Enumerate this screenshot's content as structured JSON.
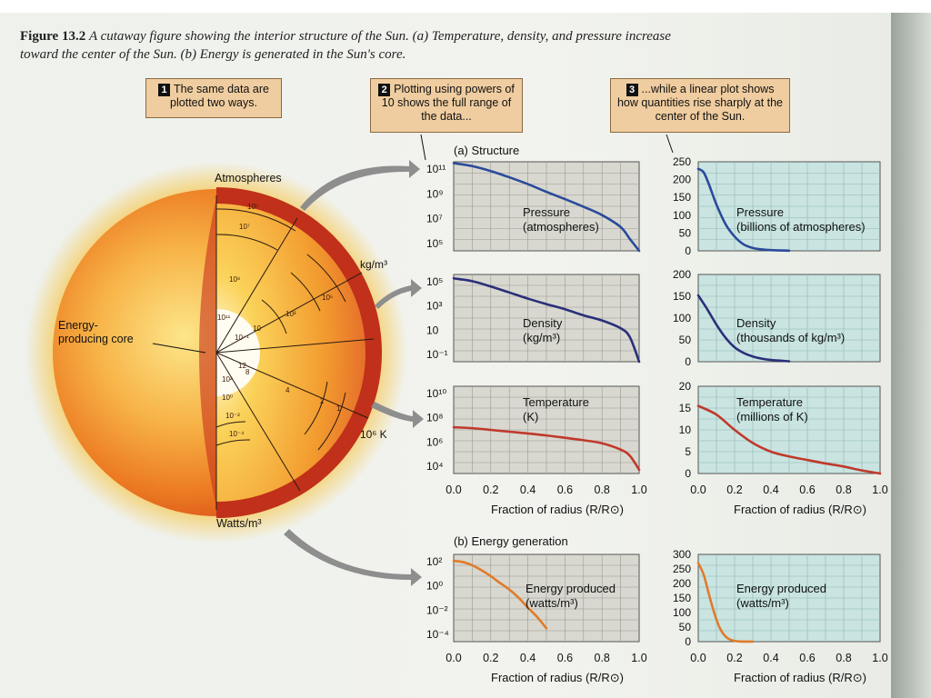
{
  "caption": {
    "label": "Figure 13.2",
    "text": "A cutaway figure showing the interior structure of the Sun. (a) Temperature, density, and pressure increase toward the center of the Sun. (b) Energy is generated in the Sun's core."
  },
  "callouts": [
    {
      "num": "1",
      "text": "The same data are plotted two ways."
    },
    {
      "num": "2",
      "text": "Plotting using powers of 10 shows the full range of the data..."
    },
    {
      "num": "3",
      "text": "...while a linear plot shows how quantities rise sharply at the center of the Sun."
    }
  ],
  "sun": {
    "labels": {
      "atmospheres": "Atmospheres",
      "kgm3": "kg/m³",
      "core": "Energy-\nproducing core",
      "temperature_unit": "10⁶ K",
      "watts": "Watts/m³"
    },
    "pressure_ticks": [
      "10⁵",
      "10⁷",
      "10⁸",
      "10¹¹"
    ],
    "density_ticks": [
      "10⁻¹",
      "10",
      "10³",
      "10⁵"
    ],
    "temperature_ticks": [
      "12",
      "8",
      "4",
      "2",
      "1"
    ],
    "energy_ticks": [
      "10²",
      "10⁰",
      "10⁻²",
      "10⁻⁴"
    ]
  },
  "sections": {
    "structure": "(a) Structure",
    "energy": "(b) Energy generation"
  },
  "xlabel": "Fraction of radius (R/R⊙)",
  "colors": {
    "pressure": "#2a4a9a",
    "density": "#2a2f7a",
    "temperature": "#c0392b",
    "energy": "#e07b2a",
    "log_bg": "#d8d8d0",
    "lin_bg": "#c9e4e1"
  },
  "chart_data": [
    {
      "type": "line",
      "scale": "log",
      "label": "Pressure\n(atmospheres)",
      "x": [
        0.0,
        0.1,
        0.2,
        0.3,
        0.4,
        0.5,
        0.6,
        0.7,
        0.8,
        0.9,
        0.95,
        1.0
      ],
      "y": [
        230000000000.0,
        130000000000.0,
        50000000000.0,
        15000000000.0,
        4000000000.0,
        900000000.0,
        220000000.0,
        50000000.0,
        10000000.0,
        1000000.0,
        100000.0,
        10000.0
      ],
      "ticks": [
        "10¹¹",
        "10⁹",
        "10⁷",
        "10⁵"
      ],
      "ylim": [
        10000.0,
        300000000000.0
      ]
    },
    {
      "type": "line",
      "scale": "log",
      "label": "Density\n(kg/m³)",
      "x": [
        0.0,
        0.1,
        0.2,
        0.3,
        0.4,
        0.5,
        0.6,
        0.7,
        0.8,
        0.9,
        0.95,
        1.0
      ],
      "y": [
        150000.0,
        90000.0,
        35000.0,
        12000.0,
        4000.0,
        1500.0,
        600,
        200,
        80,
        20,
        4,
        0.05
      ],
      "ticks": [
        "10⁵",
        "10³",
        "10",
        "10⁻¹"
      ],
      "ylim": [
        0.05,
        300000.0
      ]
    },
    {
      "type": "line",
      "scale": "log",
      "label": "Temperature\n(K)",
      "x": [
        0.0,
        0.1,
        0.2,
        0.3,
        0.4,
        0.5,
        0.6,
        0.7,
        0.8,
        0.9,
        0.95,
        1.0
      ],
      "y": [
        15500000.0,
        13000000.0,
        9500000.0,
        6800000.0,
        4900000.0,
        3400000.0,
        2200000.0,
        1400000.0,
        800000.0,
        250000.0,
        80000.0,
        6000.0
      ],
      "ticks": [
        "10¹⁰",
        "10⁸",
        "10⁶",
        "10⁴"
      ],
      "ylim": [
        3000.0,
        30000000000.0
      ]
    },
    {
      "type": "line",
      "scale": "log",
      "label": "Energy produced\n(watts/m³)",
      "x": [
        0.0,
        0.05,
        0.1,
        0.15,
        0.2,
        0.25,
        0.3,
        0.35,
        0.4,
        0.45,
        0.5
      ],
      "y": [
        270,
        210,
        110,
        40,
        12,
        3,
        0.8,
        0.15,
        0.02,
        0.003,
        0.0003
      ],
      "ticks": [
        "10²",
        "10⁰",
        "10⁻²",
        "10⁻⁴"
      ],
      "ylim": [
        2e-05,
        1000.0
      ]
    },
    {
      "type": "line",
      "scale": "linear",
      "label": "Pressure\n(billions of atmospheres)",
      "x": [
        0.0,
        0.03,
        0.06,
        0.1,
        0.15,
        0.2,
        0.25,
        0.3,
        0.35,
        0.4,
        0.5
      ],
      "y": [
        230,
        220,
        185,
        130,
        75,
        40,
        18,
        8,
        4,
        2,
        0.5
      ],
      "ticks": [
        "250",
        "200",
        "150",
        "100",
        "50",
        "0"
      ],
      "ylim": [
        0,
        250
      ]
    },
    {
      "type": "line",
      "scale": "linear",
      "label": "Density\n(thousands of kg/m³)",
      "x": [
        0.0,
        0.05,
        0.1,
        0.15,
        0.2,
        0.25,
        0.3,
        0.35,
        0.4,
        0.5
      ],
      "y": [
        152,
        120,
        85,
        55,
        33,
        20,
        12,
        7,
        4,
        1
      ],
      "ticks": [
        "200",
        "150",
        "100",
        "50",
        "0"
      ],
      "ylim": [
        0,
        200
      ]
    },
    {
      "type": "line",
      "scale": "linear",
      "label": "Temperature\n(millions of K)",
      "x": [
        0.0,
        0.1,
        0.2,
        0.3,
        0.4,
        0.5,
        0.6,
        0.7,
        0.8,
        0.9,
        1.0
      ],
      "y": [
        15.5,
        13.5,
        10,
        7,
        5,
        3.9,
        3.1,
        2.3,
        1.6,
        0.7,
        0.0
      ],
      "ticks": [
        "20",
        "15",
        "10",
        "5",
        "0"
      ],
      "ylim": [
        0,
        20
      ]
    },
    {
      "type": "line",
      "scale": "linear",
      "label": "Energy produced\n(watts/m³)",
      "x": [
        0.0,
        0.03,
        0.06,
        0.09,
        0.12,
        0.15,
        0.18,
        0.22,
        0.3
      ],
      "y": [
        270,
        230,
        160,
        95,
        45,
        18,
        6,
        1,
        0
      ],
      "ticks": [
        "300",
        "250",
        "200",
        "150",
        "100",
        "50",
        "0"
      ],
      "ylim": [
        0,
        300
      ]
    }
  ],
  "x_ticks_left": [
    "0.0",
    "0.2",
    "0.4",
    "0.6",
    "0.8",
    "1.0"
  ],
  "x_ticks_right": [
    "0.0",
    "0.2",
    "0.4",
    "0.6",
    "0.8",
    "1.0"
  ]
}
